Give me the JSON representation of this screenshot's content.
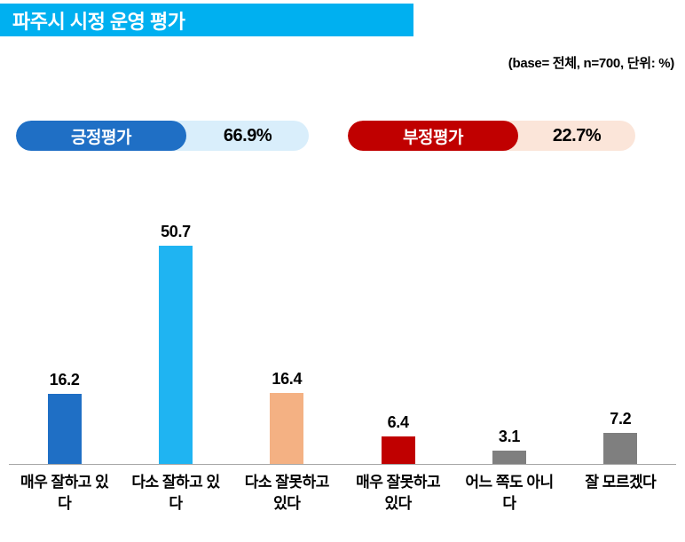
{
  "header": {
    "title": "파주시 시정 운영 평가",
    "base_note": "(base= 전체, n=700, 단위: %)"
  },
  "summary": {
    "positive": {
      "label": "긍정평가",
      "value": "66.9%",
      "color": "#1F6FC5",
      "bg": "#D9EEFB"
    },
    "negative": {
      "label": "부정평가",
      "value": "22.7%",
      "color": "#C00000",
      "bg": "#FBE5D9"
    }
  },
  "chart_data": {
    "type": "bar",
    "title": "파주시 시정 운영 평가",
    "categories": [
      "매우 잘하고 있다",
      "다소 잘하고 있다",
      "다소 잘못하고 있다",
      "매우 잘못하고 있다",
      "어느 쪽도 아니다",
      "잘 모르겠다"
    ],
    "values": [
      16.2,
      50.7,
      16.4,
      6.4,
      3.1,
      7.2
    ],
    "colors": [
      "#1F6FC5",
      "#1FB4F2",
      "#F4B183",
      "#C00000",
      "#7F7F7F",
      "#7F7F7F"
    ],
    "xlabel": "",
    "ylabel": "",
    "ylim": [
      0,
      55
    ],
    "unit": "%",
    "grid": false,
    "legend": "none",
    "value_labels": true
  }
}
